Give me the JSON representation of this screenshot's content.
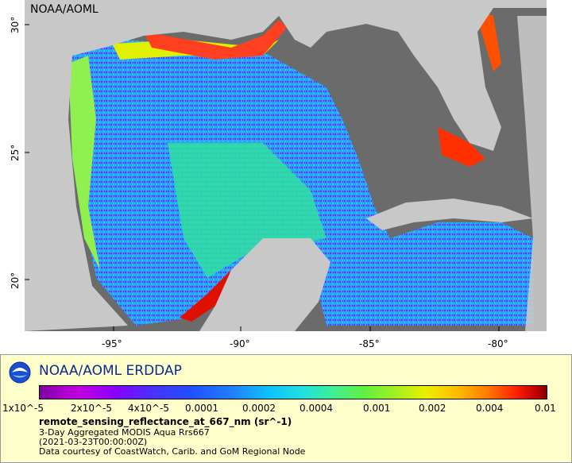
{
  "map": {
    "credit": "NOAA/AOML",
    "lon_ticks": [
      "-95°",
      "-90°",
      "-85°",
      "-80°"
    ],
    "lat_ticks": [
      "30°",
      "25°",
      "20°"
    ]
  },
  "legend": {
    "title": "NOAA/AOML ERDDAP",
    "colorbar_ticks": [
      "1x10^-5",
      "2x10^-5",
      "4x10^-5",
      "0.0001",
      "0.0002",
      "0.0004",
      "0.001",
      "0.002",
      "0.004",
      "0.01"
    ],
    "variable": "remote_sensing_reflectance_at_667_nm (sr^-1)",
    "dataset": "3-Day Aggregated MODIS Aqua Rrs667",
    "time": "(2021-03-23T00:00:00Z)",
    "source": "Data courtesy of CoastWatch, Carib. and GoM Regional Node"
  },
  "colors": {
    "land": "#c8c8c8",
    "no_data": "#6b6b6b",
    "legend_bg": "#ffffcc",
    "title_color": "#0b2a8f"
  }
}
